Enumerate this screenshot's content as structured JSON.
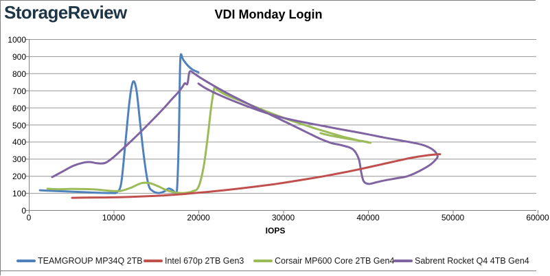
{
  "logo": {
    "text": "StorageReview"
  },
  "title": "VDI Monday Login",
  "chart_data": {
    "type": "line",
    "title": "VDI Monday Login",
    "xlabel": "IOPS",
    "ylabel": "",
    "xlim": [
      0,
      60000
    ],
    "ylim": [
      0,
      1000
    ],
    "x_ticks": [
      0,
      10000,
      20000,
      30000,
      40000,
      50000,
      60000
    ],
    "y_ticks": [
      0,
      100,
      200,
      300,
      400,
      500,
      600,
      700,
      800,
      900,
      1000
    ],
    "grid": "horizontal",
    "legend_position": "bottom",
    "colors": {
      "grid": "#969696",
      "axis": "#808080",
      "tick_text": "#000000"
    },
    "series": [
      {
        "name": "TEAMGROUP MP34Q 2TB",
        "color": "#4F81BD",
        "points": [
          [
            1300,
            116
          ],
          [
            2500,
            113
          ],
          [
            4000,
            110
          ],
          [
            5500,
            107
          ],
          [
            7000,
            104
          ],
          [
            8500,
            101
          ],
          [
            9800,
            100
          ],
          [
            10400,
            105
          ],
          [
            10900,
            160
          ],
          [
            11400,
            400
          ],
          [
            11900,
            650
          ],
          [
            12300,
            752
          ],
          [
            12700,
            700
          ],
          [
            13100,
            520
          ],
          [
            13600,
            300
          ],
          [
            14100,
            150
          ],
          [
            14600,
            112
          ],
          [
            15300,
            100
          ],
          [
            16000,
            110
          ],
          [
            16500,
            126
          ],
          [
            17000,
            115
          ],
          [
            17300,
            102
          ],
          [
            17500,
            140
          ],
          [
            17700,
            450
          ],
          [
            17800,
            750
          ],
          [
            17900,
            905
          ],
          [
            18200,
            880
          ],
          [
            18700,
            848
          ],
          [
            19300,
            822
          ],
          [
            20000,
            806
          ]
        ]
      },
      {
        "name": "Intel 670p 2TB Gen3",
        "color": "#C0504D",
        "points": [
          [
            5100,
            72
          ],
          [
            7000,
            73
          ],
          [
            9000,
            74
          ],
          [
            11000,
            76
          ],
          [
            13000,
            79
          ],
          [
            15000,
            83
          ],
          [
            17000,
            89
          ],
          [
            19000,
            97
          ],
          [
            21000,
            106
          ],
          [
            23000,
            116
          ],
          [
            25000,
            127
          ],
          [
            27000,
            139
          ],
          [
            29000,
            152
          ],
          [
            31000,
            167
          ],
          [
            33000,
            183
          ],
          [
            35000,
            200
          ],
          [
            37000,
            219
          ],
          [
            39000,
            239
          ],
          [
            41000,
            261
          ],
          [
            43000,
            283
          ],
          [
            45000,
            305
          ],
          [
            46500,
            317
          ],
          [
            47700,
            324
          ],
          [
            48500,
            327
          ]
        ]
      },
      {
        "name": "Corsair MP600 Core 2TB Gen4",
        "color": "#9BBB59",
        "points": [
          [
            2200,
            125
          ],
          [
            3500,
            122
          ],
          [
            5000,
            124
          ],
          [
            6500,
            123
          ],
          [
            8000,
            120
          ],
          [
            9500,
            113
          ],
          [
            10800,
            112
          ],
          [
            12000,
            130
          ],
          [
            13300,
            158
          ],
          [
            14300,
            157
          ],
          [
            15300,
            138
          ],
          [
            16300,
            115
          ],
          [
            17300,
            103
          ],
          [
            18300,
            100
          ],
          [
            19300,
            110
          ],
          [
            20000,
            135
          ],
          [
            20600,
            250
          ],
          [
            21100,
            430
          ],
          [
            21500,
            600
          ],
          [
            21900,
            718
          ],
          [
            22300,
            700
          ],
          [
            23500,
            668
          ],
          [
            25000,
            638
          ],
          [
            26500,
            608
          ],
          [
            28000,
            578
          ],
          [
            29500,
            550
          ],
          [
            31000,
            522
          ],
          [
            32500,
            498
          ],
          [
            34000,
            474
          ],
          [
            35500,
            452
          ],
          [
            37000,
            430
          ],
          [
            38500,
            412
          ],
          [
            39700,
            399
          ],
          [
            40300,
            394
          ],
          [
            39500,
            402
          ],
          [
            38000,
            414
          ],
          [
            36500,
            427
          ],
          [
            35200,
            440
          ],
          [
            34400,
            450
          ]
        ]
      },
      {
        "name": "Sabrent Rocket Q4 4TB Gen4",
        "color": "#8064A2",
        "points": [
          [
            2750,
            193
          ],
          [
            4000,
            226
          ],
          [
            5200,
            258
          ],
          [
            6300,
            276
          ],
          [
            7200,
            281
          ],
          [
            8100,
            274
          ],
          [
            9000,
            276
          ],
          [
            10000,
            310
          ],
          [
            11000,
            355
          ],
          [
            12200,
            410
          ],
          [
            13400,
            468
          ],
          [
            14600,
            528
          ],
          [
            15800,
            590
          ],
          [
            16800,
            645
          ],
          [
            17600,
            688
          ],
          [
            18100,
            720
          ],
          [
            18400,
            742
          ],
          [
            18700,
            738
          ],
          [
            18900,
            800
          ],
          [
            19100,
            812
          ],
          [
            19600,
            795
          ],
          [
            20300,
            772
          ],
          [
            21500,
            736
          ],
          [
            23000,
            694
          ],
          [
            24500,
            655
          ],
          [
            26000,
            618
          ],
          [
            27500,
            582
          ],
          [
            29000,
            546
          ],
          [
            30500,
            510
          ],
          [
            32000,
            474
          ],
          [
            33300,
            442
          ],
          [
            34500,
            414
          ],
          [
            35700,
            392
          ],
          [
            37000,
            378
          ],
          [
            38200,
            356
          ],
          [
            38900,
            300
          ],
          [
            39200,
            220
          ],
          [
            39500,
            168
          ],
          [
            40100,
            153
          ],
          [
            41000,
            163
          ],
          [
            42200,
            176
          ],
          [
            43500,
            187
          ],
          [
            44500,
            196
          ],
          [
            45500,
            215
          ],
          [
            46500,
            240
          ],
          [
            47400,
            268
          ],
          [
            48000,
            296
          ],
          [
            48200,
            315
          ],
          [
            47900,
            342
          ],
          [
            47300,
            364
          ],
          [
            46300,
            383
          ],
          [
            45000,
            397
          ],
          [
            43500,
            410
          ],
          [
            41800,
            425
          ],
          [
            40000,
            443
          ],
          [
            38200,
            460
          ],
          [
            36400,
            476
          ],
          [
            34600,
            493
          ],
          [
            32800,
            510
          ],
          [
            31000,
            528
          ],
          [
            29200,
            550
          ],
          [
            27400,
            578
          ],
          [
            25600,
            610
          ],
          [
            23800,
            645
          ],
          [
            22000,
            684
          ],
          [
            20800,
            714
          ],
          [
            20000,
            740
          ]
        ]
      }
    ]
  }
}
